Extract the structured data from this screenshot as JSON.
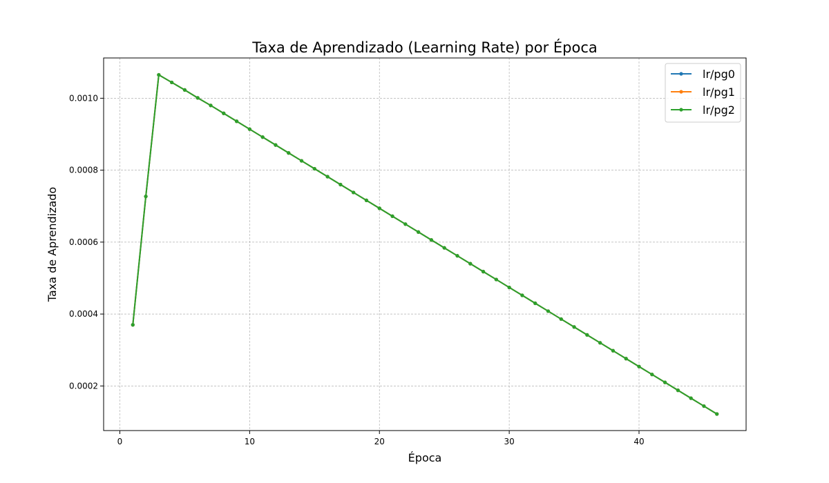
{
  "chart_data": {
    "type": "line",
    "title": "Taxa de Aprendizado (Learning Rate) por Época",
    "xlabel": "Época",
    "ylabel": "Taxa de Aprendizado",
    "xlim": [
      -1.25,
      48.25
    ],
    "ylim": [
      7.6e-05,
      0.001112
    ],
    "xticks": [
      0,
      10,
      20,
      30,
      40
    ],
    "xtick_labels": [
      "0",
      "10",
      "20",
      "30",
      "40"
    ],
    "yticks": [
      0.0002,
      0.0004,
      0.0006,
      0.0008,
      0.001
    ],
    "ytick_labels": [
      "0.0002",
      "0.0004",
      "0.0006",
      "0.0008",
      "0.0010"
    ],
    "grid": true,
    "legend_position": "top-right",
    "x": [
      1,
      2,
      3,
      4,
      5,
      6,
      7,
      8,
      9,
      10,
      11,
      12,
      13,
      14,
      15,
      16,
      17,
      18,
      19,
      20,
      21,
      22,
      23,
      24,
      25,
      26,
      27,
      28,
      29,
      30,
      31,
      32,
      33,
      34,
      35,
      36,
      37,
      38,
      39,
      40,
      41,
      42,
      43,
      44,
      45,
      46
    ],
    "series": [
      {
        "name": "lr/pg0",
        "color": "#1f77b4",
        "values": [
          0.00037,
          0.000727,
          0.001065,
          0.001044,
          0.001023,
          0.001001,
          0.00098,
          0.000958,
          0.000936,
          0.000914,
          0.000892,
          0.00087,
          0.000848,
          0.000826,
          0.000804,
          0.000782,
          0.00076,
          0.000738,
          0.000716,
          0.000694,
          0.000672,
          0.00065,
          0.000628,
          0.000606,
          0.000584,
          0.000562,
          0.00054,
          0.000518,
          0.000496,
          0.000474,
          0.000452,
          0.00043,
          0.000408,
          0.000386,
          0.000364,
          0.000342,
          0.00032,
          0.000298,
          0.000276,
          0.000254,
          0.000232,
          0.00021,
          0.000188,
          0.000166,
          0.000144,
          0.000122
        ]
      },
      {
        "name": "lr/pg1",
        "color": "#ff7f0e",
        "values": [
          0.00037,
          0.000727,
          0.001065,
          0.001044,
          0.001023,
          0.001001,
          0.00098,
          0.000958,
          0.000936,
          0.000914,
          0.000892,
          0.00087,
          0.000848,
          0.000826,
          0.000804,
          0.000782,
          0.00076,
          0.000738,
          0.000716,
          0.000694,
          0.000672,
          0.00065,
          0.000628,
          0.000606,
          0.000584,
          0.000562,
          0.00054,
          0.000518,
          0.000496,
          0.000474,
          0.000452,
          0.00043,
          0.000408,
          0.000386,
          0.000364,
          0.000342,
          0.00032,
          0.000298,
          0.000276,
          0.000254,
          0.000232,
          0.00021,
          0.000188,
          0.000166,
          0.000144,
          0.000122
        ]
      },
      {
        "name": "lr/pg2",
        "color": "#2ca02c",
        "values": [
          0.00037,
          0.000727,
          0.001065,
          0.001044,
          0.001023,
          0.001001,
          0.00098,
          0.000958,
          0.000936,
          0.000914,
          0.000892,
          0.00087,
          0.000848,
          0.000826,
          0.000804,
          0.000782,
          0.00076,
          0.000738,
          0.000716,
          0.000694,
          0.000672,
          0.00065,
          0.000628,
          0.000606,
          0.000584,
          0.000562,
          0.00054,
          0.000518,
          0.000496,
          0.000474,
          0.000452,
          0.00043,
          0.000408,
          0.000386,
          0.000364,
          0.000342,
          0.00032,
          0.000298,
          0.000276,
          0.000254,
          0.000232,
          0.00021,
          0.000188,
          0.000166,
          0.000144,
          0.000122
        ]
      }
    ]
  }
}
